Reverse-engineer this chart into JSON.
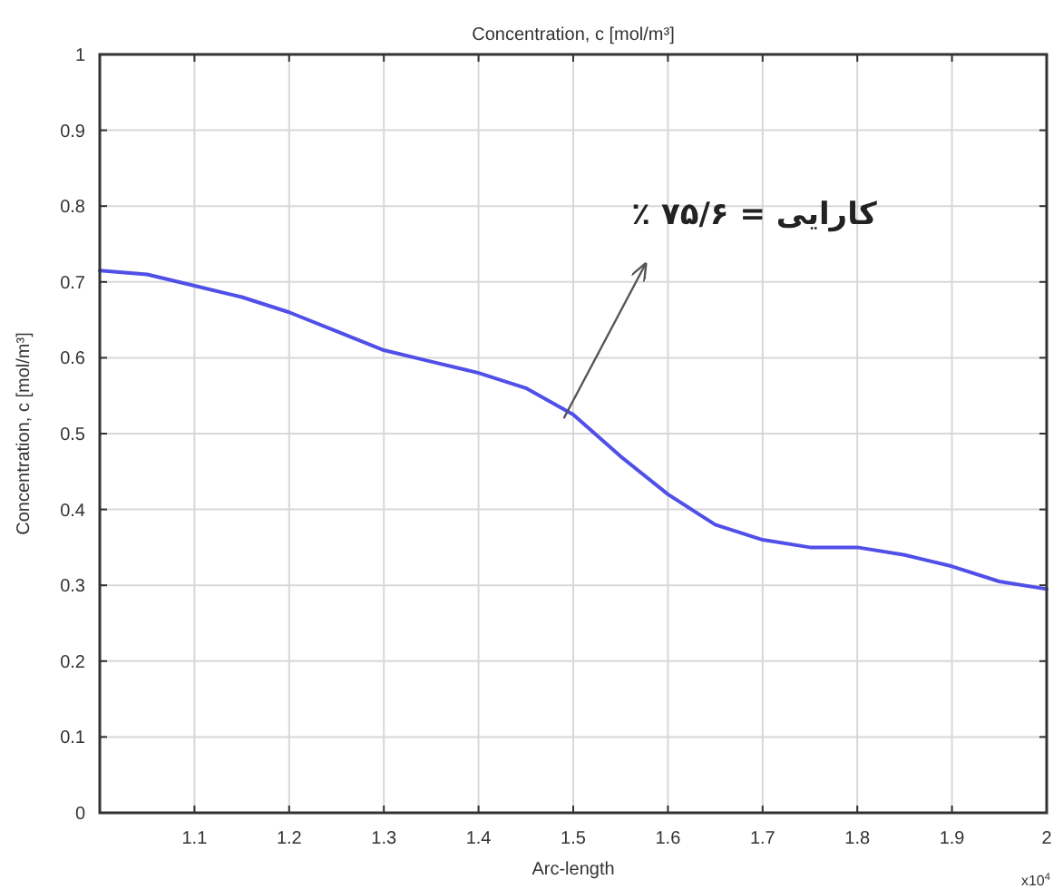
{
  "chart_data": {
    "type": "line",
    "title": "Concentration, c [mol/m³]",
    "xlabel": "Arc-length",
    "ylabel": "Concentration, c [mol/m³]",
    "x": [
      1.0,
      1.05,
      1.1,
      1.15,
      1.2,
      1.25,
      1.3,
      1.35,
      1.4,
      1.45,
      1.5,
      1.55,
      1.6,
      1.65,
      1.7,
      1.75,
      1.8,
      1.85,
      1.9,
      1.95,
      2.0
    ],
    "series": [
      {
        "color": "#5050e8",
        "values": [
          0.715,
          0.71,
          0.695,
          0.68,
          0.66,
          0.635,
          0.61,
          0.595,
          0.58,
          0.56,
          0.525,
          0.47,
          0.42,
          0.38,
          0.36,
          0.35,
          0.35,
          0.34,
          0.325,
          0.305,
          0.295
        ]
      }
    ],
    "xlim": [
      1.0,
      2.0
    ],
    "xticks": [
      {
        "value": 1.1,
        "label": "1.1"
      },
      {
        "value": 1.2,
        "label": "1.2"
      },
      {
        "value": 1.3,
        "label": "1.3"
      },
      {
        "value": 1.4,
        "label": "1.4"
      },
      {
        "value": 1.5,
        "label": "1.5"
      },
      {
        "value": 1.6,
        "label": "1.6"
      },
      {
        "value": 1.7,
        "label": "1.7"
      },
      {
        "value": 1.8,
        "label": "1.8"
      },
      {
        "value": 1.9,
        "label": "1.9"
      },
      {
        "value": 2.0,
        "label": "2"
      }
    ],
    "ylim": [
      0,
      1
    ],
    "yticks": [
      0,
      0.1,
      0.2,
      0.3,
      0.4,
      0.5,
      0.6,
      0.7,
      0.8,
      0.9,
      1
    ],
    "grid": true,
    "line_style": "solid",
    "marker": "none",
    "annotations": [
      {
        "text": "کارایی = ۷۵/۶ ٪",
        "x": 1.49,
        "y": 0.52
      },
      "x10$^{4}$"
    ]
  }
}
